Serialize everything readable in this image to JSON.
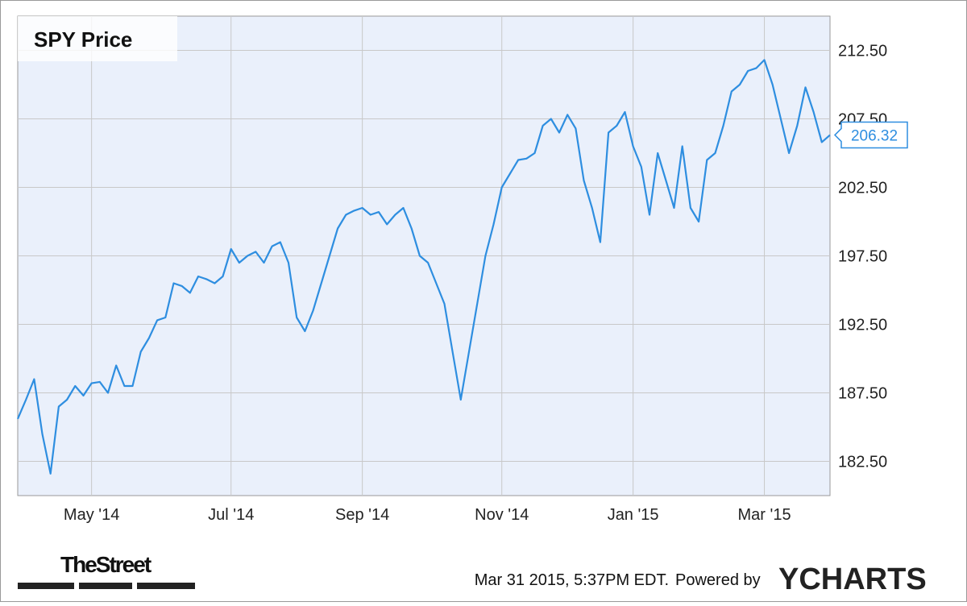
{
  "chart_data": {
    "type": "line",
    "title": "SPY Price",
    "categories": [
      null,
      null,
      null,
      null,
      null,
      null,
      null,
      null,
      null,
      "May '14",
      null,
      null,
      null,
      null,
      null,
      null,
      null,
      null,
      null,
      null,
      null,
      null,
      null,
      null,
      null,
      null,
      "Jul '14",
      null,
      null,
      null,
      null,
      null,
      null,
      null,
      null,
      null,
      null,
      null,
      null,
      null,
      null,
      null,
      "Sep '14",
      null,
      null,
      null,
      null,
      null,
      null,
      null,
      null,
      null,
      null,
      null,
      null,
      null,
      null,
      null,
      null,
      "Nov '14",
      null,
      null,
      null,
      null,
      null,
      null,
      null,
      null,
      null,
      null,
      null,
      null,
      null,
      null,
      null,
      "Jan '15",
      null,
      null,
      null,
      null,
      null,
      null,
      null,
      null,
      null,
      null,
      null,
      null,
      null,
      null,
      null,
      "Mar '15",
      null,
      null,
      null,
      null,
      null,
      null,
      null,
      null
    ],
    "series": [
      {
        "name": "SPY Price",
        "color": "#2e8ee0",
        "values": [
          185.6,
          187,
          188.5,
          184.5,
          181.6,
          186.5,
          187,
          188,
          187.3,
          188.2,
          188.3,
          187.5,
          189.5,
          188,
          188,
          190.5,
          191.5,
          192.8,
          193,
          195.5,
          195.3,
          194.8,
          196,
          195.8,
          195.5,
          196,
          198,
          197,
          197.5,
          197.8,
          197,
          198.2,
          198.5,
          197,
          193,
          192,
          193.5,
          195.5,
          197.5,
          199.5,
          200.5,
          200.8,
          201,
          200.5,
          200.7,
          199.8,
          200.5,
          201,
          199.5,
          197.5,
          197,
          195.5,
          194,
          190.5,
          187,
          190.5,
          194,
          197.5,
          199.8,
          202.5,
          203.5,
          204.5,
          204.6,
          205,
          207,
          207.5,
          206.5,
          207.8,
          206.8,
          203,
          201,
          198.5,
          206.5,
          207,
          208,
          205.5,
          204,
          200.5,
          205,
          203,
          201,
          205.5,
          201,
          200,
          204.5,
          205,
          207,
          209.5,
          210,
          211,
          211.2,
          211.8,
          210,
          207.5,
          205,
          207,
          209.8,
          208,
          205.8,
          206.32
        ]
      }
    ],
    "ylim": [
      180,
      215
    ],
    "yticks": [
      {
        "value": 182.5,
        "label": "182.50"
      },
      {
        "value": 187.5,
        "label": "187.50"
      },
      {
        "value": 192.5,
        "label": "192.50"
      },
      {
        "value": 197.5,
        "label": "197.50"
      },
      {
        "value": 202.5,
        "label": "202.50"
      },
      {
        "value": 207.5,
        "label": "207.50"
      },
      {
        "value": 212.5,
        "label": "212.50"
      }
    ],
    "grid": true,
    "source": "TheStreet",
    "timestamp": "Mar 31 2015, 5:37PM EDT.",
    "credit": "Powered by",
    "brand": "YCHARTS"
  }
}
